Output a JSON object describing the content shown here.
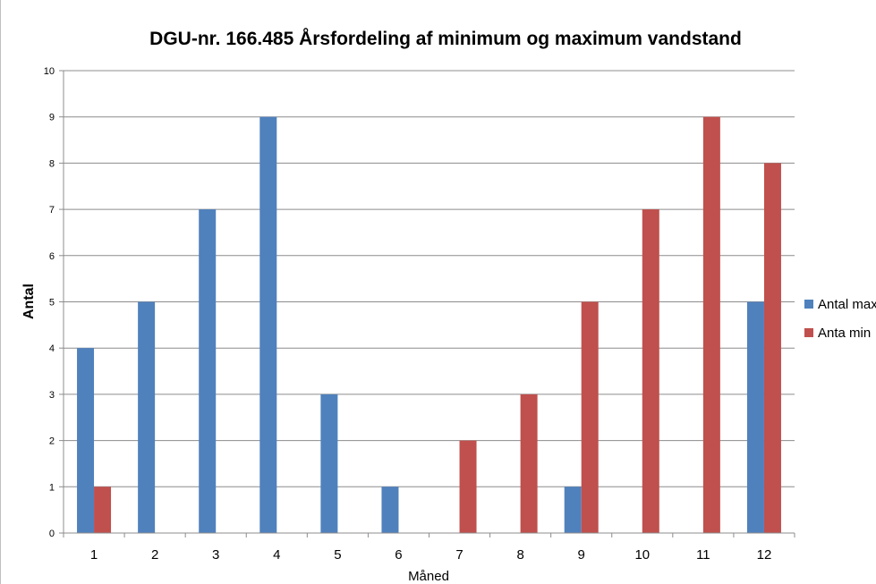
{
  "chart_data": {
    "type": "bar",
    "title": "DGU-nr. 166.485 Årsfordeling af minimum og maximum vandstand",
    "xlabel": "Måned",
    "ylabel": "Antal",
    "categories": [
      "1",
      "2",
      "3",
      "4",
      "5",
      "6",
      "7",
      "8",
      "9",
      "10",
      "11",
      "12"
    ],
    "series": [
      {
        "name": "Antal max",
        "color": "#4f81bd",
        "values": [
          4,
          5,
          7,
          9,
          3,
          1,
          0,
          0,
          1,
          0,
          0,
          5
        ]
      },
      {
        "name": "Anta min",
        "color": "#c0504d",
        "values": [
          1,
          0,
          0,
          0,
          0,
          0,
          2,
          3,
          5,
          7,
          9,
          8
        ]
      }
    ],
    "ylim": [
      0,
      10
    ],
    "yticks": [
      0,
      1,
      2,
      3,
      4,
      5,
      6,
      7,
      8,
      9,
      10
    ],
    "grid": true,
    "legend_position": "right"
  }
}
